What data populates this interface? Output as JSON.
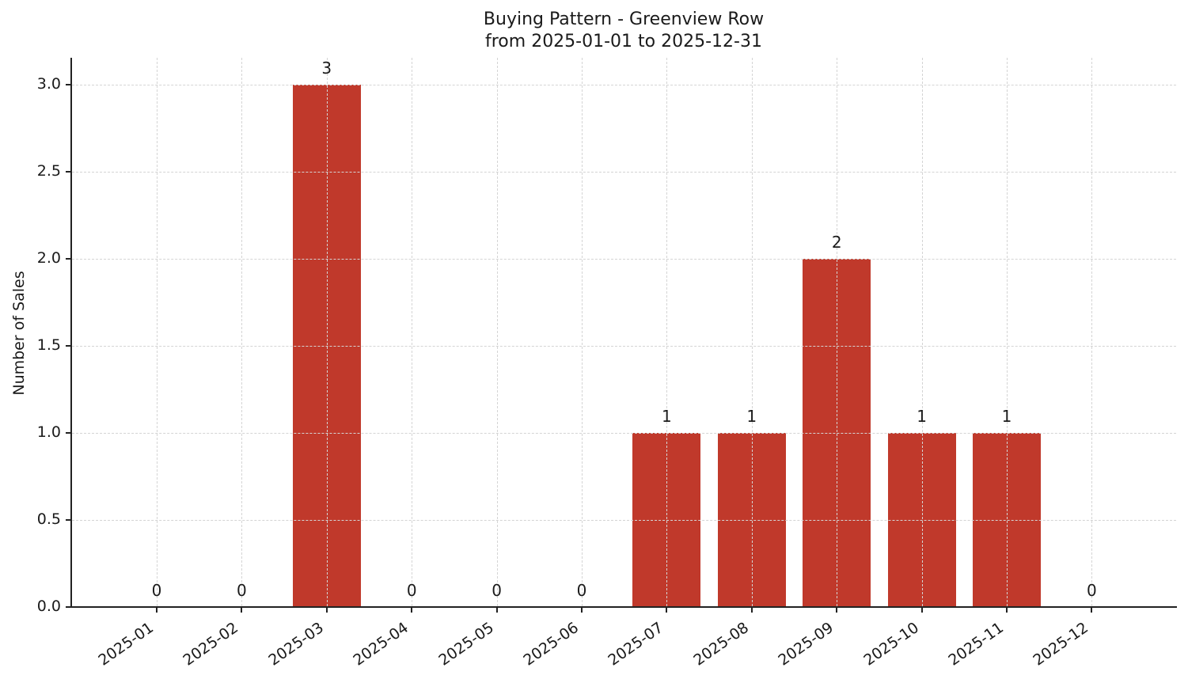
{
  "chart_data": {
    "type": "bar",
    "title": "Buying Pattern - Greenview Row",
    "subtitle": "from 2025-01-01 to 2025-12-31",
    "xlabel": "",
    "ylabel": "Number of Sales",
    "categories": [
      "2025-01",
      "2025-02",
      "2025-03",
      "2025-04",
      "2025-05",
      "2025-06",
      "2025-07",
      "2025-08",
      "2025-09",
      "2025-10",
      "2025-11",
      "2025-12"
    ],
    "values": [
      0,
      0,
      3,
      0,
      0,
      0,
      1,
      1,
      2,
      1,
      1,
      0
    ],
    "data_labels": [
      "0",
      "0",
      "3",
      "0",
      "0",
      "0",
      "1",
      "1",
      "2",
      "1",
      "1",
      "0"
    ],
    "yticks": [
      "0.0",
      "0.5",
      "1.0",
      "1.5",
      "2.0",
      "2.5",
      "3.0"
    ],
    "ylim": [
      0,
      3.15
    ],
    "grid": true,
    "bar_color": "#c0392b",
    "legend": null
  }
}
